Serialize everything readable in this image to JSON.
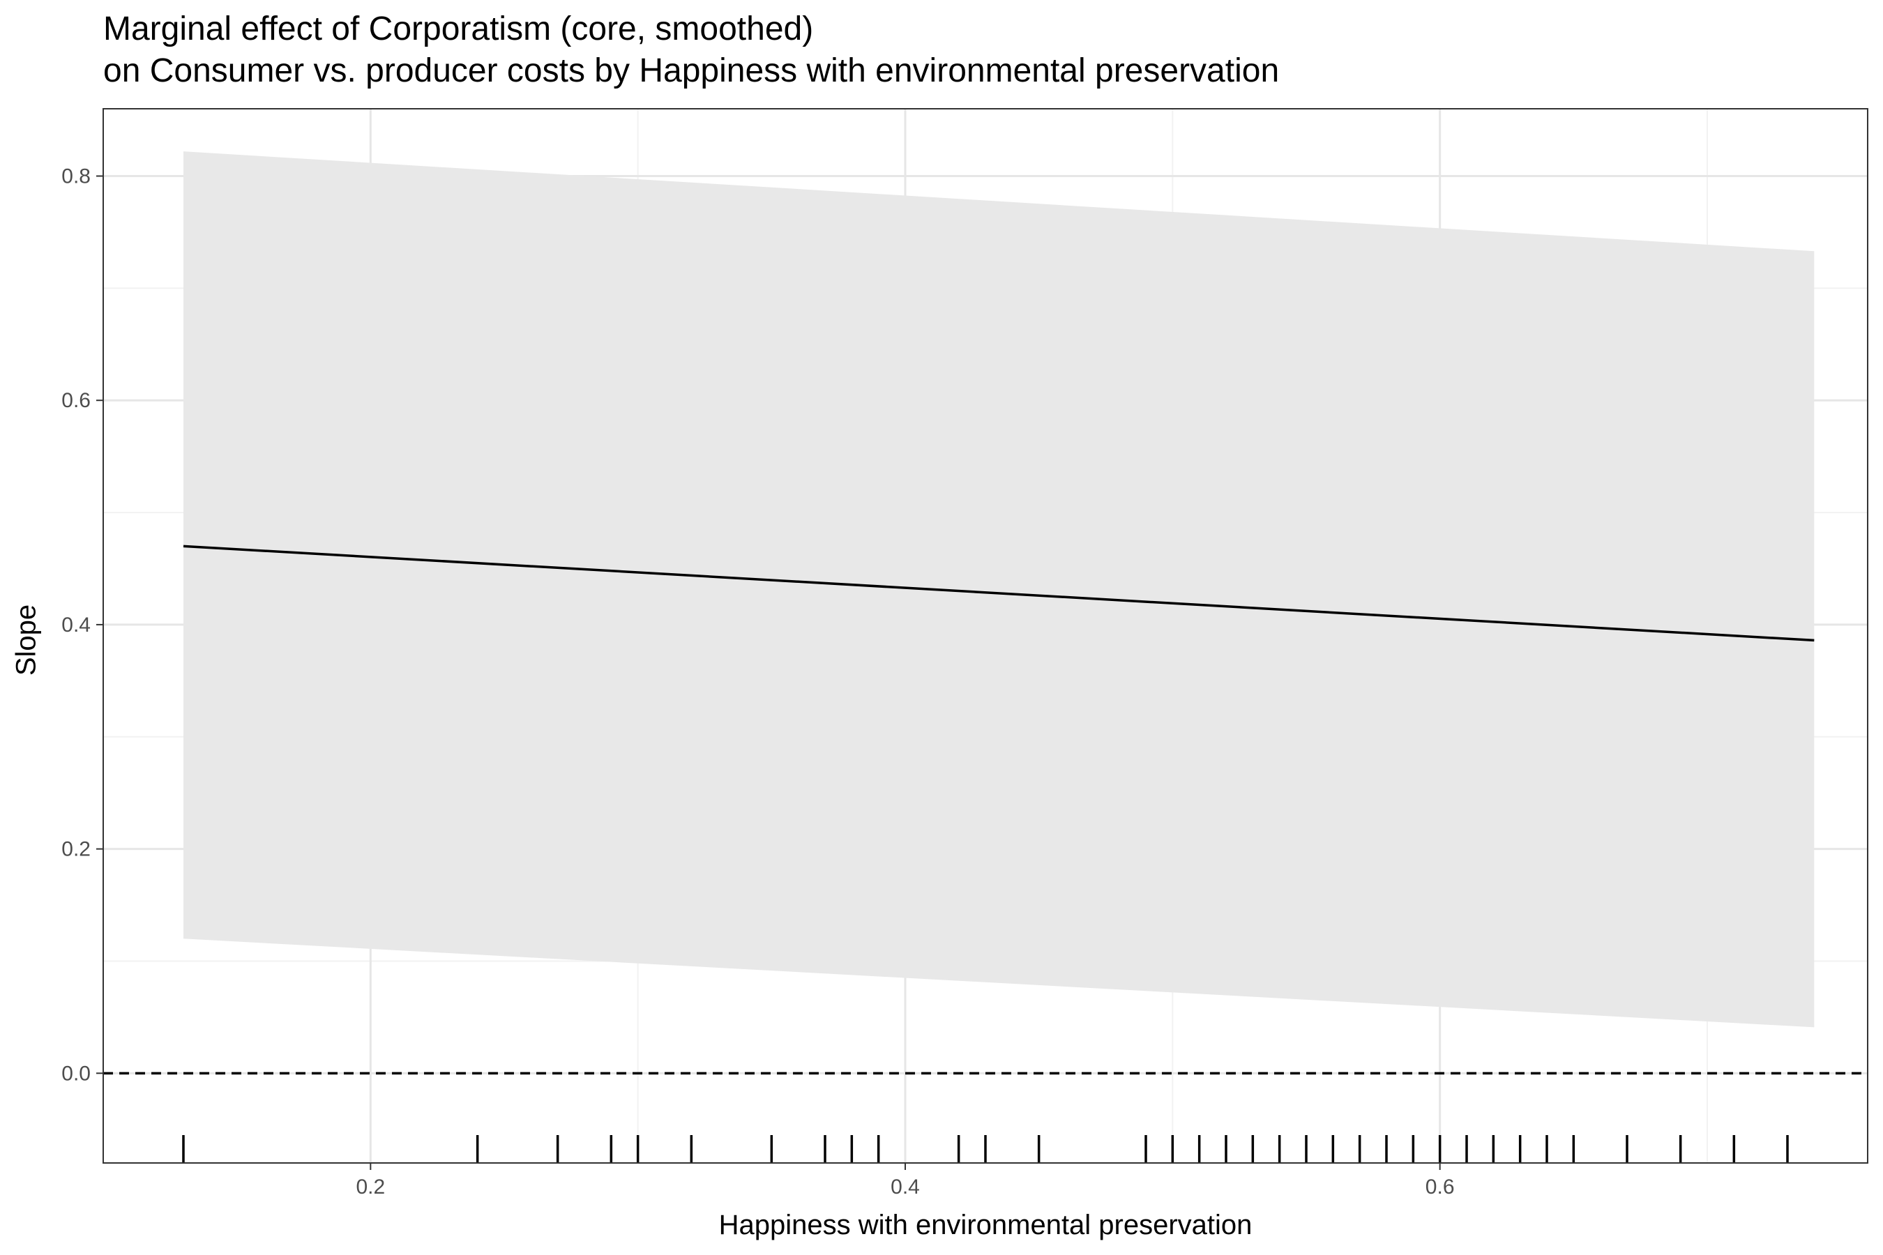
{
  "chart_data": {
    "type": "line",
    "title": "Marginal effect of Corporatism (core, smoothed)",
    "subtitle": "on Consumer vs. producer costs by Happiness with environmental preservation",
    "xlabel": "Happiness with environmental preservation",
    "ylabel": "Slope",
    "xlim": [
      0.1,
      0.76
    ],
    "ylim": [
      -0.08,
      0.86
    ],
    "x_ticks": [
      0.2,
      0.4,
      0.6
    ],
    "x_tick_labels": [
      "0.2",
      "0.4",
      "0.6"
    ],
    "y_ticks": [
      0.0,
      0.2,
      0.4,
      0.6,
      0.8
    ],
    "y_tick_labels": [
      "0.0",
      "0.2",
      "0.4",
      "0.6",
      "0.8"
    ],
    "grid": true,
    "series": [
      {
        "x": [
          0.13,
          0.74
        ],
        "y": [
          0.47,
          0.386
        ],
        "lower": [
          0.12,
          0.041
        ],
        "upper": [
          0.822,
          0.733
        ]
      }
    ],
    "reference_line": {
      "y": 0,
      "style": "dashed"
    },
    "rug_x": [
      0.13,
      0.24,
      0.27,
      0.29,
      0.3,
      0.32,
      0.35,
      0.37,
      0.38,
      0.39,
      0.42,
      0.43,
      0.45,
      0.49,
      0.5,
      0.51,
      0.52,
      0.53,
      0.54,
      0.55,
      0.56,
      0.57,
      0.58,
      0.59,
      0.6,
      0.61,
      0.62,
      0.63,
      0.64,
      0.65,
      0.67,
      0.69,
      0.71,
      0.73
    ],
    "colors": {
      "line": "#000000",
      "ribbon": "#e8e8e8",
      "grid_major": "#e6e6e6",
      "grid_minor": "#f2f2f2",
      "panel_border": "#333333"
    }
  }
}
